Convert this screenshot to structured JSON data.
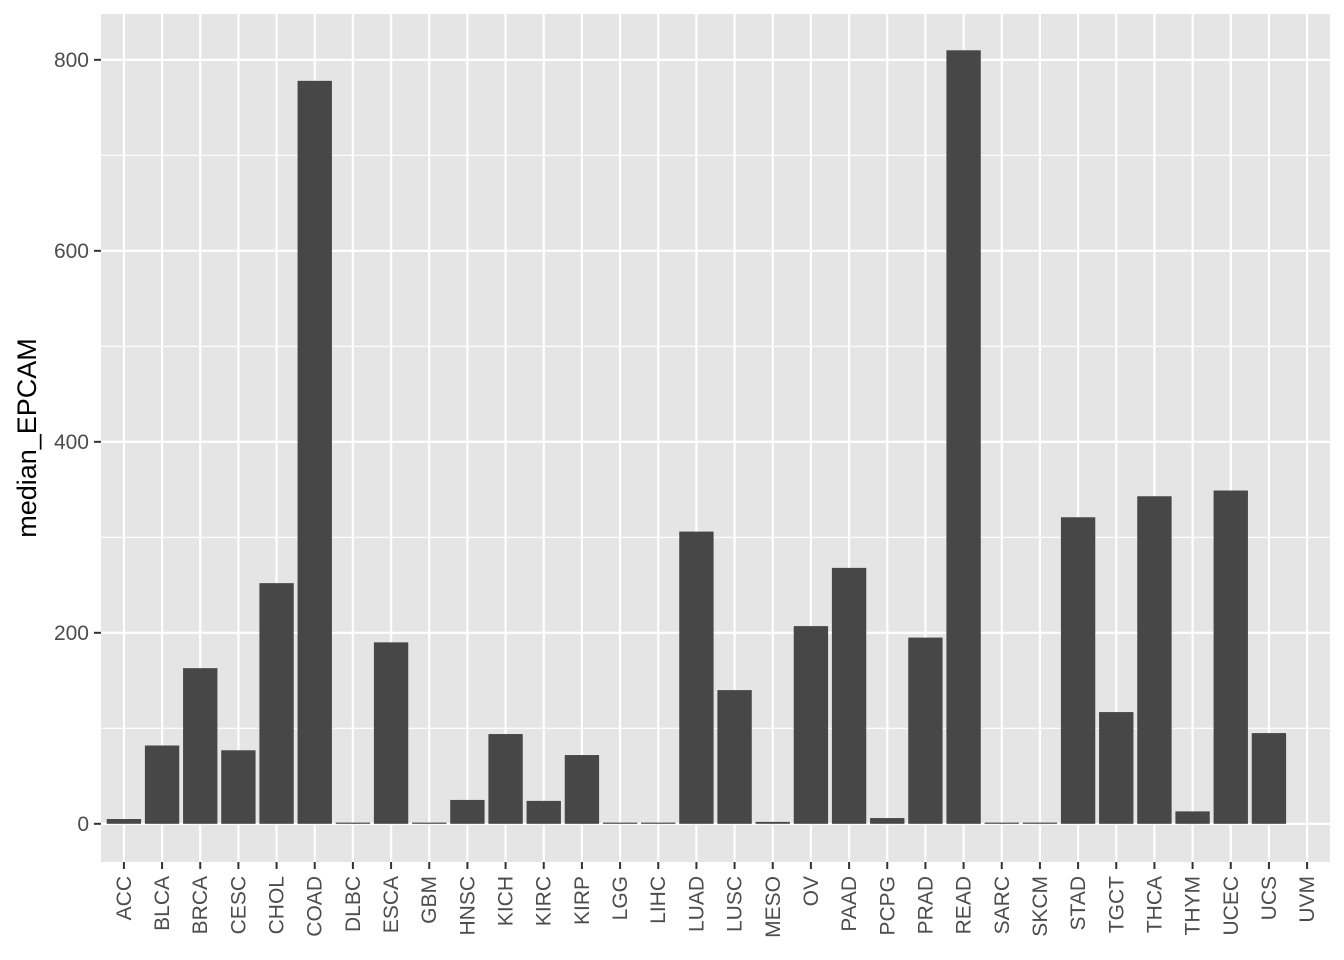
{
  "chart_data": {
    "type": "bar",
    "xlabel": "",
    "ylabel": "median_EPCAM",
    "ylim": [
      -40,
      848
    ],
    "yticks": [
      0,
      200,
      400,
      600,
      800
    ],
    "grid": true,
    "legend": "none",
    "colors": {
      "panel_background": "#e5e5e5",
      "grid_major": "#ffffff",
      "bar_fill": "#474747",
      "tick_label": "#4d4d4d",
      "axis_title": "#000000"
    },
    "categories": [
      "ACC",
      "BLCA",
      "BRCA",
      "CESC",
      "CHOL",
      "COAD",
      "DLBC",
      "ESCA",
      "GBM",
      "HNSC",
      "KICH",
      "KIRC",
      "KIRP",
      "LGG",
      "LIHC",
      "LUAD",
      "LUSC",
      "MESO",
      "OV",
      "PAAD",
      "PCPG",
      "PRAD",
      "READ",
      "SARC",
      "SKCM",
      "STAD",
      "TGCT",
      "THCA",
      "THYM",
      "UCEC",
      "UCS",
      "UVM"
    ],
    "values": [
      5,
      82,
      163,
      77,
      252,
      778,
      1,
      190,
      1,
      25,
      94,
      24,
      72,
      1,
      1,
      306,
      140,
      2,
      207,
      268,
      6,
      195,
      810,
      1,
      1,
      321,
      117,
      343,
      13,
      349,
      95,
      0
    ]
  }
}
